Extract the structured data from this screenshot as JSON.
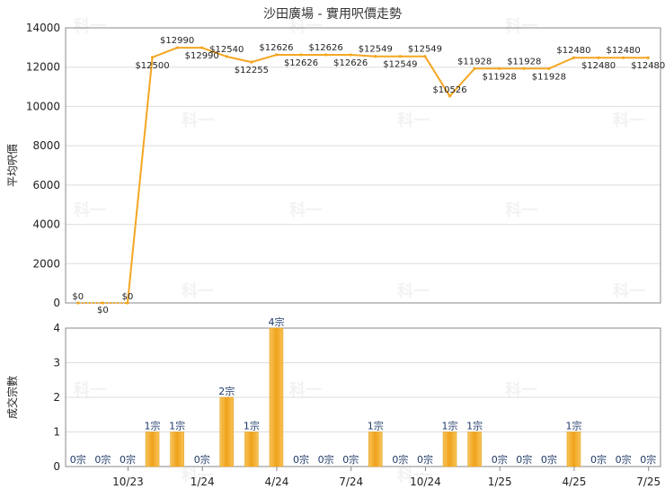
{
  "chart_data": {
    "type": "line+bar",
    "title": "沙田廣場 - 實用呎價走勢",
    "watermark": "科一",
    "colors": {
      "line": "#f5a623",
      "bar": "#f0a81a",
      "grid": "#dddddd",
      "axis": "#888888"
    },
    "x_ticks": [
      "10/23",
      "1/24",
      "4/24",
      "7/24",
      "10/24",
      "1/25",
      "4/25",
      "7/25"
    ],
    "price_chart": {
      "ylabel": "平均呎價",
      "ylim": [
        0,
        14000
      ],
      "yticks": [
        0,
        2000,
        4000,
        6000,
        8000,
        10000,
        12000,
        14000
      ],
      "labels": [
        "$0",
        "$0",
        "$0",
        "$12500",
        "$12990",
        "$12990",
        "$12540",
        "$12255",
        "$12626",
        "$12626",
        "$12626",
        "$12626",
        "$12549",
        "$12549",
        "$12549",
        "$10526",
        "$11928",
        "$11928",
        "$11928",
        "$11928",
        "$12480",
        "$12480",
        "$12480",
        "$12480"
      ],
      "values": [
        0,
        0,
        0,
        12500,
        12990,
        12990,
        12540,
        12255,
        12626,
        12626,
        12626,
        12626,
        12549,
        12549,
        12549,
        10526,
        11928,
        11928,
        11928,
        11928,
        12480,
        12480,
        12480,
        12480
      ]
    },
    "volume_chart": {
      "ylabel": "成交宗數",
      "ylim": [
        0,
        4
      ],
      "yticks": [
        0,
        1,
        2,
        3,
        4
      ],
      "labels": [
        "0宗",
        "0宗",
        "0宗",
        "1宗",
        "1宗",
        "0宗",
        "2宗",
        "1宗",
        "4宗",
        "0宗",
        "0宗",
        "0宗",
        "1宗",
        "0宗",
        "0宗",
        "1宗",
        "1宗",
        "0宗",
        "0宗",
        "0宗",
        "1宗",
        "0宗",
        "0宗",
        "0宗"
      ],
      "values": [
        0,
        0,
        0,
        1,
        1,
        0,
        2,
        1,
        4,
        0,
        0,
        0,
        1,
        0,
        0,
        1,
        1,
        0,
        0,
        0,
        1,
        0,
        0,
        0
      ]
    }
  }
}
